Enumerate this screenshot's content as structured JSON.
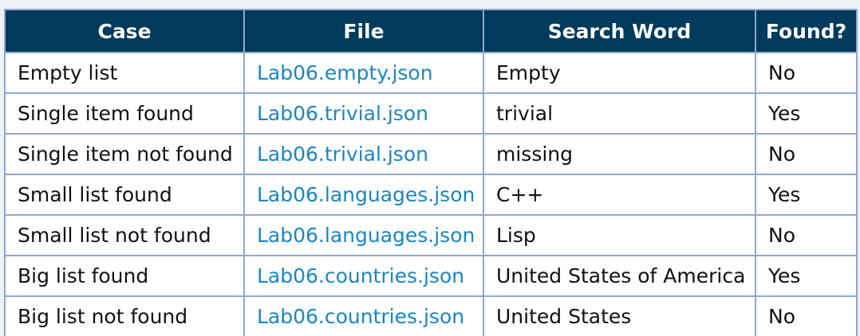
{
  "table": {
    "headers": [
      "Case",
      "File",
      "Search Word",
      "Found?"
    ],
    "rows": [
      [
        "Empty list",
        "Lab06.empty.json",
        "Empty",
        "No"
      ],
      [
        "Single item found",
        "Lab06.trivial.json",
        "trivial",
        "Yes"
      ],
      [
        "Single item not found",
        "Lab06.trivial.json",
        "missing",
        "No"
      ],
      [
        "Small list found",
        "Lab06.languages.json",
        "C++",
        "Yes"
      ],
      [
        "Small list not found",
        "Lab06.languages.json",
        "Lisp",
        "No"
      ],
      [
        "Big list found",
        "Lab06.countries.json",
        "United States of America",
        "Yes"
      ],
      [
        "Big list not found",
        "Lab06.countries.json",
        "United States",
        "No"
      ]
    ]
  },
  "colors": {
    "header_background": "#003a5d",
    "header_text": "#ffffff",
    "file_link": "#1a86c4",
    "border": "#8fa8cf"
  }
}
